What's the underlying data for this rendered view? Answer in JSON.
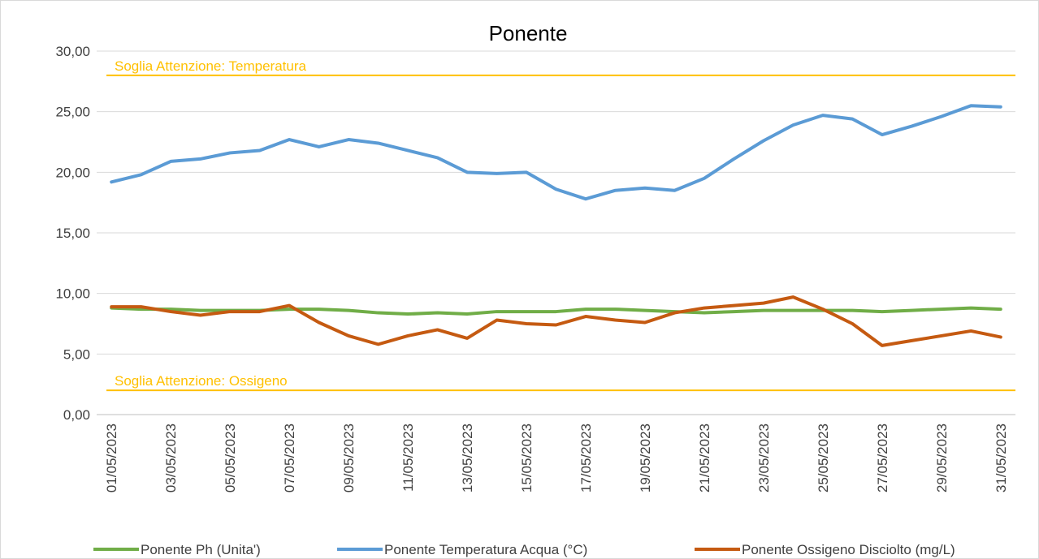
{
  "chart_data": {
    "type": "line",
    "title": "Ponente",
    "categories": [
      "01/05/2023",
      null,
      "03/05/2023",
      null,
      "05/05/2023",
      null,
      "07/05/2023",
      null,
      "09/05/2023",
      null,
      "11/05/2023",
      null,
      "13/05/2023",
      null,
      "15/05/2023",
      null,
      "17/05/2023",
      null,
      "19/05/2023",
      null,
      "21/05/2023",
      null,
      "23/05/2023",
      null,
      "25/05/2023",
      null,
      "27/05/2023",
      null,
      "29/05/2023",
      null,
      "31/05/2023"
    ],
    "series": [
      {
        "name": "Ponente Ph (Unita')",
        "color": "#70ad47",
        "values": [
          8.8,
          8.7,
          8.7,
          8.6,
          8.6,
          8.6,
          8.7,
          8.7,
          8.6,
          8.4,
          8.3,
          8.4,
          8.3,
          8.5,
          8.5,
          8.5,
          8.7,
          8.7,
          8.6,
          8.5,
          8.4,
          8.5,
          8.6,
          8.6,
          8.6,
          8.6,
          8.5,
          8.6,
          8.7,
          8.8,
          8.7
        ]
      },
      {
        "name": "Ponente Temperatura Acqua (°C)",
        "color": "#5b9bd5",
        "values": [
          19.2,
          19.8,
          20.9,
          21.1,
          21.6,
          21.8,
          22.7,
          22.1,
          22.7,
          22.4,
          21.8,
          21.2,
          20.0,
          19.9,
          20.0,
          18.6,
          17.8,
          18.5,
          18.7,
          18.5,
          19.5,
          21.1,
          22.6,
          23.9,
          24.7,
          24.4,
          23.1,
          23.8,
          24.6,
          25.5,
          25.4
        ]
      },
      {
        "name": "Ponente Ossigeno Disciolto (mg/L)",
        "color": "#c55a11",
        "values": [
          8.9,
          8.9,
          8.5,
          8.2,
          8.5,
          8.5,
          9.0,
          7.6,
          6.5,
          5.8,
          6.5,
          7.0,
          6.3,
          7.8,
          7.5,
          7.4,
          8.1,
          7.8,
          7.6,
          8.4,
          8.8,
          9.0,
          9.2,
          9.7,
          8.7,
          7.5,
          5.7,
          6.1,
          6.5,
          6.9,
          6.4
        ]
      }
    ],
    "thresholds": [
      {
        "label": "Soglia Attenzione: Temperatura",
        "value": 28,
        "color": "#ffc000"
      },
      {
        "label": "Soglia Attenzione: Ossigeno",
        "value": 2,
        "color": "#ffc000"
      }
    ],
    "ylim": [
      0,
      30
    ],
    "yticks": [
      {
        "value": 0,
        "label": "0,00"
      },
      {
        "value": 5,
        "label": "5,00"
      },
      {
        "value": 10,
        "label": "10,00"
      },
      {
        "value": 15,
        "label": "15,00"
      },
      {
        "value": 20,
        "label": "20,00"
      },
      {
        "value": 25,
        "label": "25,00"
      },
      {
        "value": 30,
        "label": "30,00"
      }
    ],
    "grid": true,
    "legend": "bottom"
  }
}
